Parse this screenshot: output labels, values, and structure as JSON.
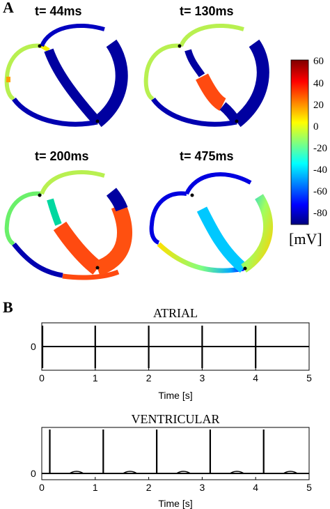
{
  "panel_a": {
    "letter": "A",
    "snapshots": [
      {
        "time_label": "t= 44ms"
      },
      {
        "time_label": "t= 130ms"
      },
      {
        "time_label": "t= 200ms"
      },
      {
        "time_label": "t= 475ms"
      }
    ],
    "colorbar": {
      "ticks": [
        "60",
        "40",
        "20",
        "0",
        "-20",
        "-40",
        "-60",
        "-80"
      ],
      "unit": "[mV]",
      "range_mV": [
        -90,
        60
      ],
      "colormap": [
        "#00007f",
        "#0000ff",
        "#00ffff",
        "#ffff00",
        "#ff0000",
        "#7f0000"
      ]
    }
  },
  "panel_b": {
    "letter": "B",
    "atrial": {
      "title": "ATRIAL",
      "y_tick": "0",
      "x_ticks": [
        "0",
        "1",
        "2",
        "3",
        "4",
        "5"
      ],
      "xlabel": "Time [s]"
    },
    "ventricular": {
      "title": "VENTRICULAR",
      "y_tick": "0",
      "x_ticks": [
        "0",
        "1",
        "2",
        "3",
        "4",
        "5"
      ],
      "xlabel": "Time [s]"
    }
  },
  "chart_data": [
    {
      "type": "line",
      "title": "ATRIAL",
      "xlabel": "Time [s]",
      "ylabel": "",
      "xlim": [
        0,
        5
      ],
      "y_ticks": [
        0
      ],
      "series": [
        {
          "spike_times_s": [
            0.0,
            1.0,
            2.0,
            3.0,
            4.0
          ]
        }
      ]
    },
    {
      "type": "line",
      "title": "VENTRICULAR",
      "xlabel": "Time [s]",
      "ylabel": "",
      "xlim": [
        0,
        5
      ],
      "y_ticks": [
        0
      ],
      "series": [
        {
          "spike_times_s": [
            0.15,
            1.15,
            2.15,
            3.15,
            4.15
          ],
          "t_wave_times_s": [
            0.65,
            1.65,
            2.65,
            3.65,
            4.65
          ]
        }
      ]
    }
  ]
}
